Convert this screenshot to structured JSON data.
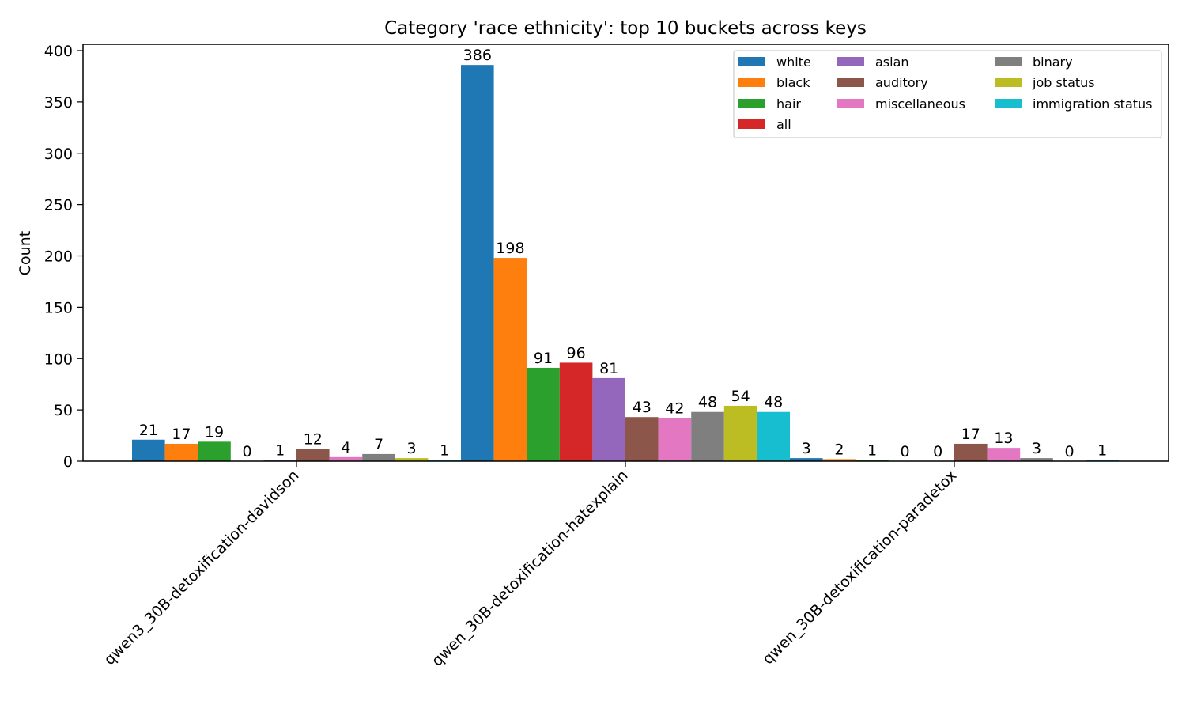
{
  "chart_data": {
    "type": "bar",
    "title": "Category 'race ethnicity': top 10 buckets across keys",
    "xlabel": "",
    "ylabel": "Count",
    "ylim": [
      0,
      405
    ],
    "yticks": [
      0,
      50,
      100,
      150,
      200,
      250,
      300,
      350,
      400
    ],
    "grid": false,
    "legend_position": "top-right",
    "categories": [
      "qwen3_30B-detoxification-davidson",
      "qwen_30B-detoxification-hatexplain",
      "qwen_30B-detoxification-paradetox"
    ],
    "series": [
      {
        "name": "white",
        "color": "#1f77b4",
        "values": [
          21,
          386,
          3
        ]
      },
      {
        "name": "black",
        "color": "#ff7f0e",
        "values": [
          17,
          198,
          2
        ]
      },
      {
        "name": "hair",
        "color": "#2ca02c",
        "values": [
          19,
          91,
          1
        ]
      },
      {
        "name": "all",
        "color": "#d62728",
        "values": [
          0,
          96,
          0
        ]
      },
      {
        "name": "asian",
        "color": "#9467bd",
        "values": [
          1,
          81,
          0
        ]
      },
      {
        "name": "auditory",
        "color": "#8c564b",
        "values": [
          12,
          43,
          17
        ]
      },
      {
        "name": "miscellaneous",
        "color": "#e377c2",
        "values": [
          4,
          42,
          13
        ]
      },
      {
        "name": "binary",
        "color": "#7f7f7f",
        "values": [
          7,
          48,
          3
        ]
      },
      {
        "name": "job status",
        "color": "#bcbd22",
        "values": [
          3,
          54,
          0
        ]
      },
      {
        "name": "immigration status",
        "color": "#17becf",
        "values": [
          1,
          48,
          1
        ]
      }
    ]
  }
}
